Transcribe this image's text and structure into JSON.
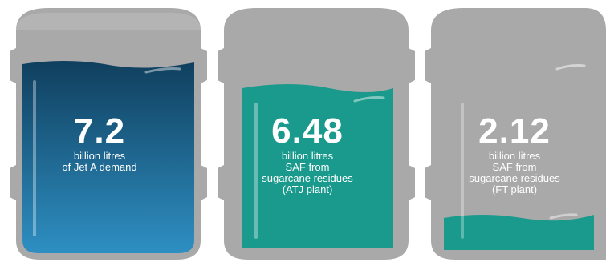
{
  "barrels": [
    {
      "value": "7.2",
      "caption": "billion litres\nof Jet A demand",
      "fill_level": 0.8,
      "fill_color_top": "#103f5e",
      "fill_color_bottom": "#2e8fc2"
    },
    {
      "value": "6.48",
      "caption": "billion litres\nSAF from\nsugarcane residues\n(ATJ plant)",
      "fill_level": 0.72,
      "fill_color_top": "#1a9a8c",
      "fill_color_bottom": "#1a9a8c"
    },
    {
      "value": "2.12",
      "caption": "billion litres\nSAF from\nsugarcane residues\n(FT plant)",
      "fill_level": 0.2,
      "fill_color_top": "#1a9a8c",
      "fill_color_bottom": "#1a9a8c"
    }
  ],
  "colors": {
    "barrel_body": "#a9a9a9",
    "barrel_rim": "#bdbdbd",
    "background": "#ffffff"
  }
}
